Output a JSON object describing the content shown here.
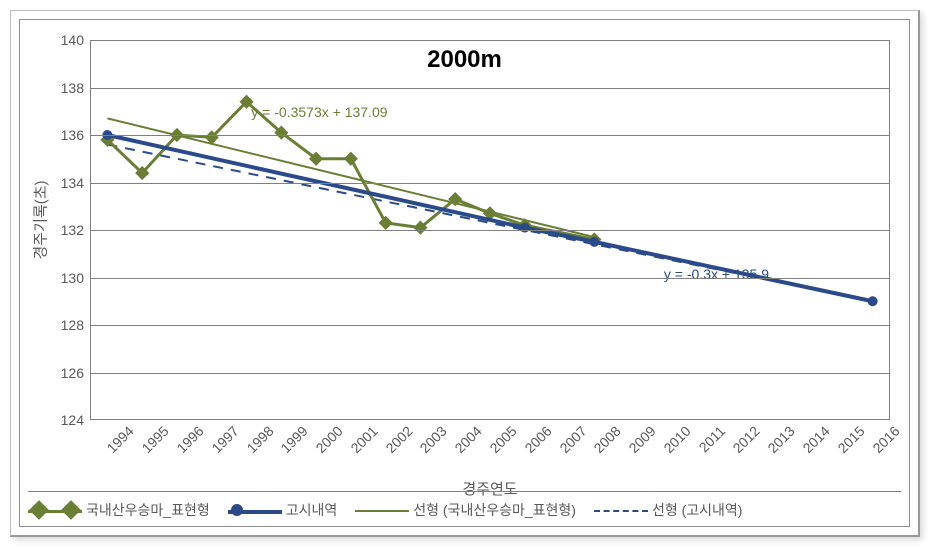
{
  "chart": {
    "type": "line",
    "title": "2000m",
    "x_axis_title": "경주연도",
    "y_axis_title": "경주기록(초)",
    "x_ticks": [
      1994,
      1995,
      1996,
      1997,
      1998,
      1999,
      2000,
      2001,
      2002,
      2003,
      2004,
      2005,
      2006,
      2007,
      2008,
      2009,
      2010,
      2011,
      2012,
      2013,
      2014,
      2015,
      2016
    ],
    "y_min": 124,
    "y_max": 140,
    "y_tick_step": 2,
    "grid_color": "#808080",
    "background_color": "#ffffff",
    "title_fontsize": 24,
    "axis_label_fontsize": 15,
    "tick_fontsize": 14,
    "series": {
      "domestic": {
        "label": "국내산우승마_표현형",
        "color": "#6b7e36",
        "line_width": 3,
        "marker": "diamond",
        "marker_size": 10,
        "x": [
          1994,
          1995,
          1996,
          1997,
          1998,
          1999,
          2000,
          2001,
          2002,
          2003,
          2004,
          2005,
          2006,
          2008
        ],
        "y": [
          135.8,
          134.4,
          136.0,
          135.9,
          137.4,
          136.1,
          135.0,
          135.0,
          132.3,
          132.1,
          133.3,
          132.7,
          132.2,
          131.6
        ]
      },
      "official": {
        "label": "고시내역",
        "color": "#2a4a8a",
        "line_width": 4,
        "marker": "circle",
        "marker_size": 7,
        "x": [
          1994,
          2006,
          2008,
          2016
        ],
        "y": [
          136.0,
          132.1,
          131.5,
          129.0
        ]
      },
      "trend_domestic": {
        "label": "선형 (국내산우승마_표현형)",
        "color": "#6b7e36",
        "line_width": 2,
        "dash": false,
        "equation": "y = -0.3573x + 137.09",
        "equation_color": "#6b7e36",
        "x": [
          1994,
          2008
        ],
        "y": [
          136.7,
          131.7
        ]
      },
      "trend_official": {
        "label": "선형 (고시내역)",
        "color": "#2a4a8a",
        "line_width": 2,
        "dash": true,
        "equation": "y = -0.3x + 135.9",
        "equation_color": "#2a4a8a",
        "x": [
          1994,
          2016
        ],
        "y": [
          135.6,
          129.0
        ]
      }
    },
    "legend_position": "bottom"
  }
}
